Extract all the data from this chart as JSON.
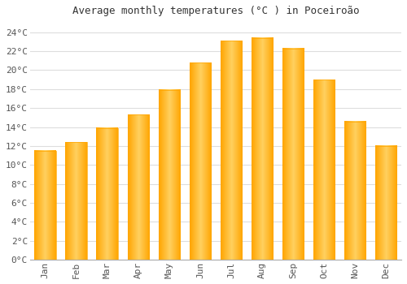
{
  "title": "Average monthly temperatures (°C ) in Poceiroão",
  "months": [
    "Jan",
    "Feb",
    "Mar",
    "Apr",
    "May",
    "Jun",
    "Jul",
    "Aug",
    "Sep",
    "Oct",
    "Nov",
    "Dec"
  ],
  "values": [
    11.5,
    12.4,
    13.9,
    15.3,
    17.9,
    20.8,
    23.1,
    23.4,
    22.3,
    19.0,
    14.6,
    12.0
  ],
  "bar_color_center": "#FFD060",
  "bar_color_edge": "#FFA500",
  "background_color": "#FFFFFF",
  "grid_color": "#DDDDDD",
  "ylim": [
    0,
    25
  ],
  "yticks": [
    0,
    2,
    4,
    6,
    8,
    10,
    12,
    14,
    16,
    18,
    20,
    22,
    24
  ],
  "ytick_labels": [
    "0°C",
    "2°C",
    "4°C",
    "6°C",
    "8°C",
    "10°C",
    "12°C",
    "14°C",
    "16°C",
    "18°C",
    "20°C",
    "22°C",
    "24°C"
  ],
  "title_fontsize": 9,
  "tick_fontsize": 8,
  "bar_width": 0.7
}
